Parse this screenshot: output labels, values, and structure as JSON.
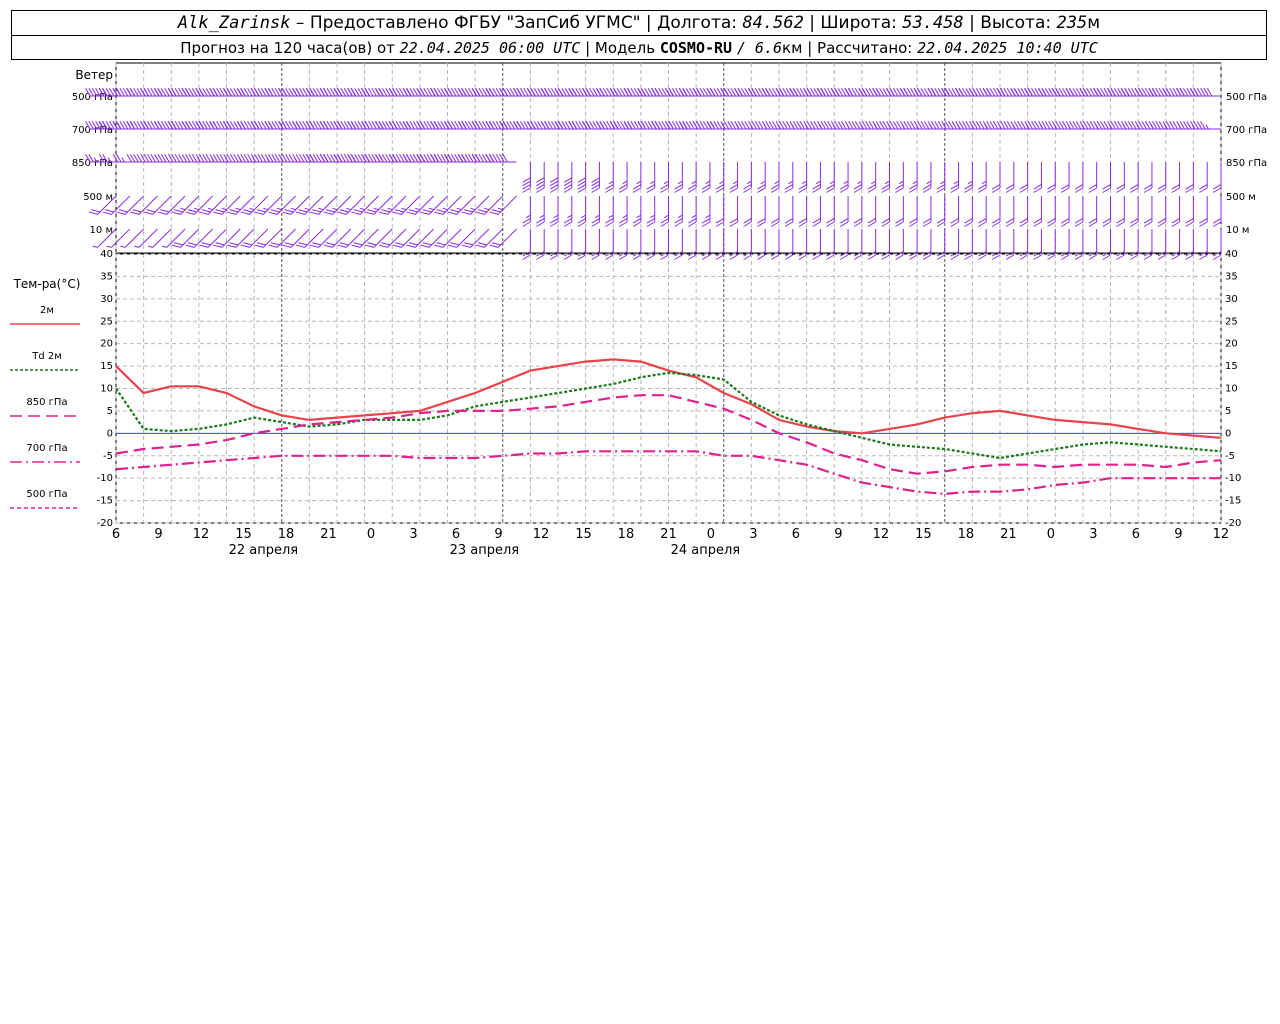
{
  "header": {
    "station": "Alk_Zarinsk",
    "provided_by": "– Предоставлено ФГБУ \"ЗапСиб УГМС\"",
    "lon_label": "Долгота:",
    "lon_value": "84.562",
    "lat_label": "Широта:",
    "lat_value": "53.458",
    "alt_label": "Высота:",
    "alt_value": "235",
    "alt_unit": "м",
    "forecast_label": "Прогноз на 120 часа(ов) от",
    "forecast_start": "22.04.2025 06:00 UTC",
    "model_label": "Модель",
    "model_name": "COSMO-RU",
    "model_res": "/ 6.6",
    "model_res_unit": "км",
    "calc_label": "Рассчитано:",
    "calc_time": "22.04.2025 10:40 UTC",
    "sep": "|"
  },
  "time_axis": {
    "hour_labels": [
      "6",
      "9",
      "12",
      "15",
      "18",
      "21",
      "0",
      "3",
      "6",
      "9",
      "12",
      "15",
      "18",
      "21",
      "0",
      "3",
      "6",
      "9",
      "12",
      "15",
      "18",
      "21",
      "0",
      "3",
      "6",
      "9",
      "12"
    ],
    "day_labels": [
      {
        "text": "22 апреля",
        "hour": 16
      },
      {
        "text": "23 апреля",
        "hour": 40
      },
      {
        "text": "24 апреля",
        "hour": 64
      }
    ],
    "midnights": [
      18,
      42,
      66,
      90
    ]
  },
  "wind_panel": {
    "title": "Ветер",
    "levels": [
      "500 гПа",
      "700 гПа",
      "850 гПа",
      "500 м",
      "10 м"
    ],
    "levels_right": [
      "500 гПа",
      "700 гПа",
      "850 гПа",
      "500 м",
      "10 м"
    ],
    "colors": {
      "barb": "#8a2be2"
    },
    "hour_step": 1.5,
    "encoding_note": "each level: one string, char per time step; letters A–H direction (N,NE,E,SE,S,SW,W,NW), digit = speed class (knots/5)",
    "rows": [
      "G8G8G8G8G8G9G9G9G9G8G8G8G8G8G8G8G8G8G8G8G8G8G8G8G8G8G8G8G9G9G9G9G9G9G8G8G8G8G7G7G7G7G7G7G7G7G7G7G7G7G7G7G7G7G7G7G7G7G7G7G7G7G7G7G7G7G7G7G7G7G7G7G7G7G7G7G7G7G7G7G7G7",
      "G6G6G6G6G6G6G6G6G7G7G7G7G7G7G7G8G8G8G8G8G8G8G8G8G8G8G8G7G7G7G6G6G6G6G6G6G6G6G6G6G6G6G6G6G6G5G5G5G5G5G5G5G5G5G5G5G5G5G5G5G5G5G5G5G5G5G5G5G5G5G5G5G5G5G5G5G5G5G5G5G5G5",
      "G3G3G3G4G4G4G4G5G5G5G5G5G5G5G5G6G6G6G6G6G6G6G7G7G7G7G6G6G6G6E4E4E4E4E4E4E3E3E3E3E3E3E3E3E3E3E3E3E3E3E3E3E3E3E3E3E3E3E3E3E3E3E3E3E2E2E2E2E2E2E2E2E2E2E2E2E2E2E2E2E2E2E2E2",
      "F2F2F2F2F2F2F3F3F3F3F3F3F3F3F3F3F3F3F3F3F3F3F3F3F3F3F3F3F3F3E3E3E3E3E3E3E3E3E3E3E3E3E3E3E2E2E2E2E2E2E2E2E2E2E2E2E2E2E2E2E2E2E2E2E2E2E2E2E2E2E2E2E2E2E2E2E2E2E2E2E2E2E2E2",
      "F1F1F1F1F1F1F2F2F2F2F2F2F2F2F2F2F2F2F2F2F2F2F2F2F2F2F2F2F2F2E2E2E2E2E2E2E2E2E2E2E2E2E2E2E2E2E2E2E2E2E2E2E2E2E2E2E2E2E2E2E2E2E2E2E2E2E2E2E2E2E2E2E2E2E2E2E2E2E2E2E2E2E2E2"
    ]
  },
  "temp_panel": {
    "ylabel": "Тем-ра(°C)",
    "legend": [
      {
        "label": "2м",
        "color": "#e8434a",
        "dash": ""
      },
      {
        "label": "Td 2м",
        "color": "#1a7a1a",
        "dash": "3,2"
      },
      {
        "label": "850 гПа",
        "color": "#e0208f",
        "dash": "12,6"
      },
      {
        "label": "700 гПа",
        "color": "#e0208f",
        "dash": "12,4,2,4"
      },
      {
        "label": "500 гПа",
        "color": "#e0208f",
        "dash": "4,3"
      }
    ],
    "ylim": [
      -20,
      40
    ],
    "yticks": [
      40,
      35,
      30,
      25,
      20,
      15,
      10,
      5,
      0,
      -5,
      -10,
      -15,
      -20
    ],
    "zero_line_color": "#3a4ecf"
  },
  "chart_data": [
    {
      "type": "line",
      "x_hours_from_start": [
        0,
        3,
        6,
        9,
        12,
        15,
        18,
        21,
        24,
        27,
        30,
        33,
        36,
        39,
        42,
        45,
        48,
        51,
        54,
        57,
        60,
        63,
        66,
        69,
        72,
        75,
        78,
        81,
        84,
        87,
        90,
        93,
        96,
        99,
        102,
        105,
        108,
        111,
        114,
        117,
        120
      ],
      "series": [
        {
          "name": "2м",
          "values": [
            15,
            9,
            10.5,
            10.5,
            9,
            6,
            4,
            3,
            3.5,
            4,
            4.5,
            5,
            7,
            9,
            11.5,
            14,
            15,
            16,
            16.5,
            16,
            14,
            12.5,
            9,
            6.5,
            3,
            1.5,
            0.5,
            0,
            1,
            2,
            3.5,
            4.5,
            5,
            4,
            3,
            2.5,
            2,
            1,
            0,
            -0.5,
            -1
          ]
        },
        {
          "name": "Td 2м",
          "values": [
            10,
            1,
            0.5,
            1,
            2,
            3.5,
            2.5,
            1.5,
            2,
            3,
            3,
            3,
            4,
            6,
            7,
            8,
            9,
            10,
            11,
            12.5,
            13.5,
            13,
            12,
            7,
            4,
            2,
            0.5,
            -1,
            -2.5,
            -3,
            -3.5,
            -4.5,
            -5.5,
            -4.5,
            -3.5,
            -2.5,
            -2,
            -2.5,
            -3,
            -3.5,
            -4
          ]
        },
        {
          "name": "850 гПа",
          "values": [
            -4.5,
            -3.5,
            -3,
            -2.5,
            -1.5,
            0,
            1,
            2,
            2.5,
            3,
            3.5,
            4.5,
            5,
            5,
            5,
            5.5,
            6,
            7,
            8,
            8.5,
            8.5,
            7,
            5.5,
            3,
            0,
            -2,
            -4.5,
            -6,
            -8,
            -9,
            -8.5,
            -7.5,
            -7,
            -7,
            -7.5,
            -7,
            -7,
            -7,
            -7.5,
            -6.5,
            -6
          ]
        },
        {
          "name": "700 гПа",
          "values": [
            -8,
            -7.5,
            -7,
            -6.5,
            -6,
            -5.5,
            -5,
            -5,
            -5,
            -5,
            -5,
            -5.5,
            -5.5,
            -5.5,
            -5,
            -4.5,
            -4.5,
            -4,
            -4,
            -4,
            -4,
            -4,
            -5,
            -5,
            -6,
            -7,
            -9,
            -11,
            -12,
            -13,
            -13.5,
            -13,
            -13,
            -12.5,
            -11.5,
            -11,
            -10,
            -10,
            -10,
            -10,
            -10
          ]
        }
      ],
      "ylim": [
        -20,
        40
      ]
    }
  ]
}
